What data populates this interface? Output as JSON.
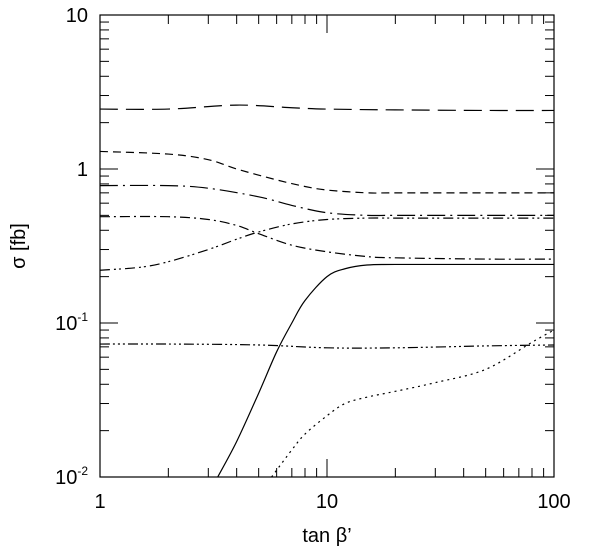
{
  "chart_data": {
    "type": "line",
    "xlabel": "tan β’",
    "ylabel": "σ [fb]",
    "xscale": "log",
    "yscale": "log",
    "xlim": [
      1,
      100
    ],
    "ylim": [
      0.01,
      10
    ],
    "grid": false,
    "x_ticks": [
      {
        "value": 1,
        "label": "1"
      },
      {
        "value": 10,
        "label": "10"
      },
      {
        "value": 100,
        "label": "100"
      }
    ],
    "y_ticks": [
      {
        "value": 0.01,
        "base": "10",
        "exp": "-2"
      },
      {
        "value": 0.1,
        "base": "10",
        "exp": "-1"
      },
      {
        "value": 1,
        "base": "1",
        "exp": ""
      },
      {
        "value": 10,
        "base": "10",
        "exp": ""
      }
    ],
    "series": [
      {
        "dash": "long-dash",
        "color": "#000000",
        "x": [
          1,
          2,
          4,
          7,
          10,
          20,
          50,
          100
        ],
        "y": [
          2.45,
          2.45,
          2.6,
          2.5,
          2.45,
          2.42,
          2.4,
          2.4
        ]
      },
      {
        "dash": "short-dash",
        "color": "#000000",
        "x": [
          1,
          2,
          3,
          4,
          6,
          8,
          10,
          15,
          20,
          50,
          100
        ],
        "y": [
          1.3,
          1.25,
          1.15,
          1.0,
          0.85,
          0.77,
          0.73,
          0.7,
          0.7,
          0.7,
          0.7
        ]
      },
      {
        "dash": "long-dash-dot",
        "color": "#000000",
        "x": [
          1,
          2,
          3,
          5,
          7,
          10,
          15,
          20,
          50,
          100
        ],
        "y": [
          0.78,
          0.78,
          0.75,
          0.66,
          0.58,
          0.52,
          0.5,
          0.5,
          0.5,
          0.5
        ]
      },
      {
        "dash": "dash-dot",
        "color": "#000000",
        "x": [
          1,
          2,
          3,
          4,
          5,
          7,
          10,
          15,
          20,
          50,
          100
        ],
        "y": [
          0.49,
          0.49,
          0.47,
          0.43,
          0.38,
          0.32,
          0.29,
          0.27,
          0.265,
          0.26,
          0.26
        ]
      },
      {
        "dash": "dash-dot-dot",
        "color": "#000000",
        "x": [
          1,
          1.5,
          2,
          3,
          4,
          5,
          7,
          10,
          15,
          20,
          50,
          100
        ],
        "y": [
          0.22,
          0.23,
          0.25,
          0.3,
          0.35,
          0.39,
          0.44,
          0.47,
          0.48,
          0.48,
          0.48,
          0.48
        ]
      },
      {
        "dash": "solid",
        "color": "#000000",
        "x": [
          3.3,
          4,
          5,
          6,
          7,
          8,
          10,
          12,
          15,
          20,
          50,
          100
        ],
        "y": [
          0.01,
          0.017,
          0.035,
          0.065,
          0.1,
          0.14,
          0.2,
          0.225,
          0.238,
          0.24,
          0.24,
          0.24
        ]
      },
      {
        "dash": "dash-dot-dot-dot",
        "color": "#000000",
        "x": [
          1,
          2,
          5,
          10,
          20,
          50,
          100
        ],
        "y": [
          0.073,
          0.073,
          0.072,
          0.069,
          0.069,
          0.071,
          0.072
        ]
      },
      {
        "dash": "dotted",
        "color": "#000000",
        "x": [
          5.7,
          7,
          8,
          10,
          12,
          15,
          20,
          30,
          50,
          80,
          100
        ],
        "y": [
          0.01,
          0.015,
          0.019,
          0.025,
          0.03,
          0.033,
          0.036,
          0.041,
          0.05,
          0.075,
          0.09
        ]
      }
    ]
  }
}
